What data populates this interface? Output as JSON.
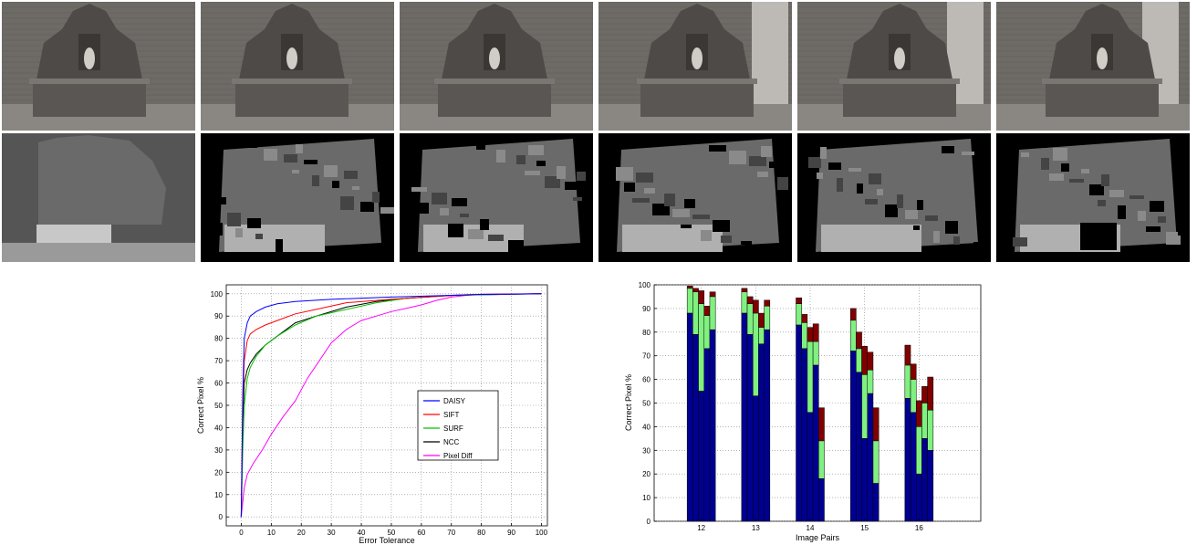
{
  "image_rows": {
    "photos": [
      "photo-1",
      "photo-2",
      "photo-3",
      "photo-4",
      "photo-5",
      "photo-6"
    ],
    "depth_maps": [
      "depth-ground-truth",
      "depth-2",
      "depth-3",
      "depth-4",
      "depth-5",
      "depth-6"
    ]
  },
  "chart_data": [
    {
      "type": "line",
      "xlabel": "Error Tolerance",
      "ylabel": "Correct Pixel %",
      "xlim": [
        -5,
        102
      ],
      "ylim": [
        -4,
        104
      ],
      "xticks": [
        0,
        10,
        20,
        30,
        40,
        50,
        60,
        70,
        80,
        90,
        100
      ],
      "yticks": [
        0,
        10,
        20,
        30,
        40,
        50,
        60,
        70,
        80,
        90,
        100
      ],
      "grid": true,
      "legend_position": "center-right",
      "series": [
        {
          "name": "DAISY",
          "color": "#0000ff",
          "points": [
            [
              0,
              0
            ],
            [
              0.5,
              55
            ],
            [
              1,
              80
            ],
            [
              2,
              87
            ],
            [
              3,
              90
            ],
            [
              5,
              92
            ],
            [
              8,
              94
            ],
            [
              12,
              95.5
            ],
            [
              18,
              96.5
            ],
            [
              30,
              97.5
            ],
            [
              50,
              98.5
            ],
            [
              70,
              99.3
            ],
            [
              80,
              99.7
            ],
            [
              100,
              100
            ]
          ]
        },
        {
          "name": "SIFT",
          "color": "#ff0000",
          "points": [
            [
              0,
              0
            ],
            [
              0.5,
              50
            ],
            [
              1,
              70
            ],
            [
              2,
              79
            ],
            [
              3,
              82
            ],
            [
              5,
              84
            ],
            [
              8,
              86
            ],
            [
              12,
              88
            ],
            [
              18,
              91
            ],
            [
              25,
              93
            ],
            [
              35,
              96
            ],
            [
              50,
              97.5
            ],
            [
              65,
              98.8
            ],
            [
              75,
              99.6
            ],
            [
              100,
              100
            ]
          ]
        },
        {
          "name": "SURF",
          "color": "#00c000",
          "points": [
            [
              0,
              0
            ],
            [
              0.5,
              30
            ],
            [
              1,
              50
            ],
            [
              2,
              62
            ],
            [
              3,
              67
            ],
            [
              5,
              72
            ],
            [
              8,
              77
            ],
            [
              12,
              81
            ],
            [
              18,
              86
            ],
            [
              25,
              90
            ],
            [
              35,
              93
            ],
            [
              45,
              96
            ],
            [
              55,
              98
            ],
            [
              70,
              99.3
            ],
            [
              100,
              100
            ]
          ]
        },
        {
          "name": "NCC",
          "color": "#000000",
          "points": [
            [
              0,
              0
            ],
            [
              0.5,
              40
            ],
            [
              1,
              60
            ],
            [
              2,
              66
            ],
            [
              3,
              69
            ],
            [
              5,
              73
            ],
            [
              8,
              77
            ],
            [
              12,
              81
            ],
            [
              18,
              87
            ],
            [
              25,
              90
            ],
            [
              35,
              94
            ],
            [
              45,
              96.5
            ],
            [
              55,
              98
            ],
            [
              70,
              99.3
            ],
            [
              100,
              100
            ]
          ]
        },
        {
          "name": "Pixel Diff",
          "color": "#ff00ff",
          "points": [
            [
              0,
              0
            ],
            [
              1,
              13
            ],
            [
              2,
              19
            ],
            [
              4,
              24
            ],
            [
              7,
              30
            ],
            [
              10,
              37
            ],
            [
              14,
              45
            ],
            [
              18,
              52
            ],
            [
              22,
              62
            ],
            [
              26,
              70
            ],
            [
              30,
              78
            ],
            [
              35,
              84
            ],
            [
              40,
              88
            ],
            [
              45,
              90
            ],
            [
              50,
              92
            ],
            [
              55,
              93.5
            ],
            [
              60,
              95
            ],
            [
              65,
              97
            ],
            [
              70,
              98.5
            ],
            [
              75,
              99.3
            ],
            [
              80,
              99.8
            ],
            [
              100,
              100
            ]
          ]
        }
      ]
    },
    {
      "type": "bar",
      "xlabel": "Image Pairs",
      "ylabel": "Correct Pixel %",
      "ylim": [
        0,
        100
      ],
      "yticks": [
        0,
        10,
        20,
        30,
        40,
        50,
        60,
        70,
        80,
        90,
        100
      ],
      "grid": true,
      "colors": {
        "base": "#000090",
        "mid": "#80f080",
        "top": "#800000"
      },
      "groups": [
        {
          "label": "12",
          "bars": [
            {
              "base": 88,
              "mid": 98.5,
              "top": 99.5
            },
            {
              "base": 79,
              "mid": 97,
              "top": 98.5
            },
            {
              "base": 55,
              "mid": 92,
              "top": 97.5
            },
            {
              "base": 73,
              "mid": 87,
              "top": 91
            },
            {
              "base": 81,
              "mid": 95,
              "top": 97
            }
          ]
        },
        {
          "label": "13",
          "bars": [
            {
              "base": 88,
              "mid": 97,
              "top": 98.5
            },
            {
              "base": 79,
              "mid": 92,
              "top": 95
            },
            {
              "base": 53,
              "mid": 88,
              "top": 93.5
            },
            {
              "base": 75,
              "mid": 82,
              "top": 88
            },
            {
              "base": 81,
              "mid": 91,
              "top": 93.5
            }
          ]
        },
        {
          "label": "14",
          "bars": [
            {
              "base": 83,
              "mid": 92,
              "top": 94.5
            },
            {
              "base": 73,
              "mid": 84,
              "top": 87.5
            },
            {
              "base": 46,
              "mid": 76,
              "top": 82
            },
            {
              "base": 66,
              "mid": 76,
              "top": 83.5
            },
            {
              "base": 18,
              "mid": 34,
              "top": 48
            }
          ]
        },
        {
          "label": "15",
          "bars": [
            {
              "base": 72,
              "mid": 85,
              "top": 90
            },
            {
              "base": 63,
              "mid": 73,
              "top": 80
            },
            {
              "base": 35,
              "mid": 62,
              "top": 74
            },
            {
              "base": 54,
              "mid": 64,
              "top": 71.5
            },
            {
              "base": 16,
              "mid": 34,
              "top": 48
            }
          ]
        },
        {
          "label": "16",
          "bars": [
            {
              "base": 52,
              "mid": 66,
              "top": 74.5
            },
            {
              "base": 46,
              "mid": 60,
              "top": 66.5
            },
            {
              "base": 20,
              "mid": 40,
              "top": 51
            },
            {
              "base": 35,
              "mid": 50,
              "top": 57
            },
            {
              "base": 30,
              "mid": 47,
              "top": 61
            }
          ]
        }
      ]
    }
  ]
}
